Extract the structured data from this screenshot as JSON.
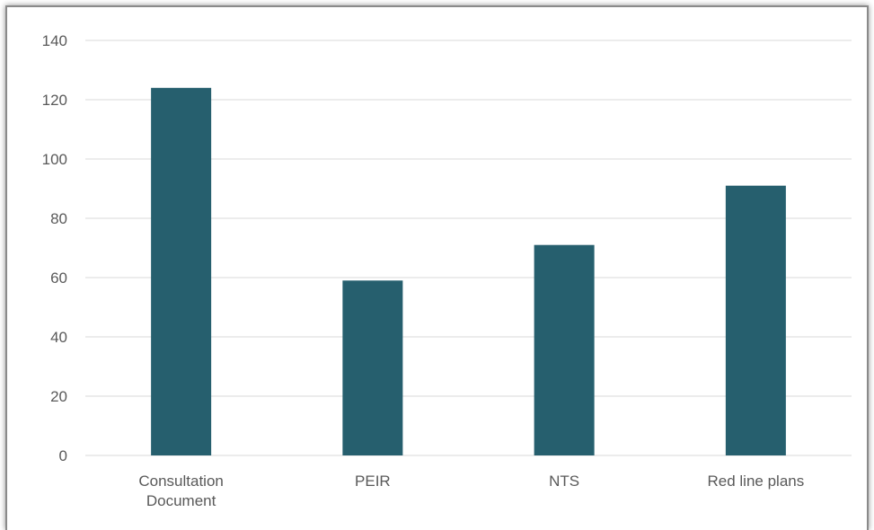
{
  "chart_data": {
    "type": "bar",
    "categories": [
      "Consultation Document",
      "PEIR",
      "NTS",
      "Red line plans"
    ],
    "category_lines": [
      [
        "Consultation",
        "Document"
      ],
      [
        "PEIR"
      ],
      [
        "NTS"
      ],
      [
        "Red line plans"
      ]
    ],
    "values": [
      124,
      59,
      71,
      91
    ],
    "yticks": [
      0,
      20,
      40,
      60,
      80,
      100,
      120,
      140
    ],
    "ylim": [
      0,
      140
    ],
    "grid": true,
    "colors": {
      "bar": "#265f6e",
      "grid": "#d9d9d9",
      "text": "#595959"
    }
  }
}
